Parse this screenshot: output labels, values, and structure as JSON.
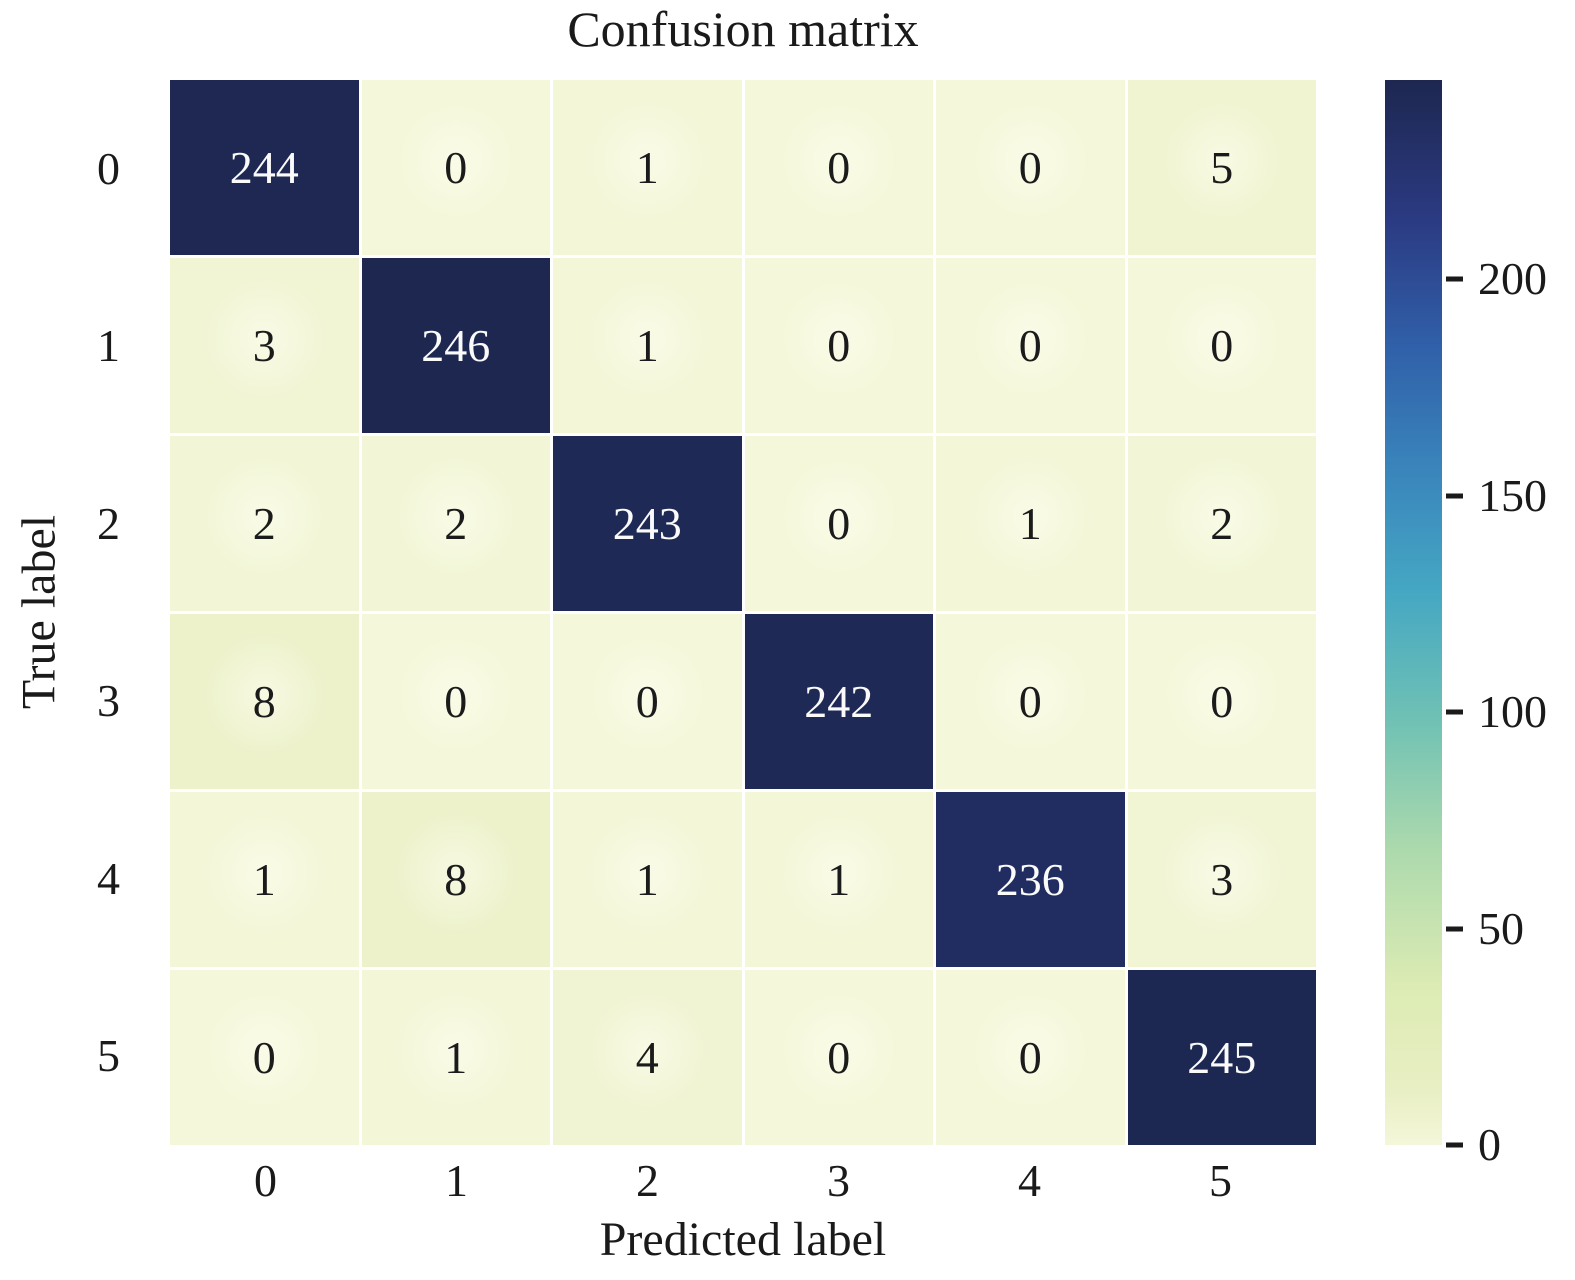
{
  "chart_data": {
    "type": "heatmap",
    "title": "Confusion matrix",
    "xlabel": "Predicted label",
    "ylabel": "True label",
    "x_tick_labels": [
      "0",
      "1",
      "2",
      "3",
      "4",
      "5"
    ],
    "y_tick_labels": [
      "0",
      "1",
      "2",
      "3",
      "4",
      "5"
    ],
    "matrix": [
      [
        244,
        0,
        1,
        0,
        0,
        5
      ],
      [
        3,
        246,
        1,
        0,
        0,
        0
      ],
      [
        2,
        2,
        243,
        0,
        1,
        2
      ],
      [
        8,
        0,
        0,
        242,
        0,
        0
      ],
      [
        1,
        8,
        1,
        1,
        236,
        3
      ],
      [
        0,
        1,
        4,
        0,
        0,
        245
      ]
    ],
    "colorbar": {
      "position": "right",
      "vmin": 0,
      "vmax": 246,
      "tick_values": [
        0,
        50,
        100,
        150,
        200
      ],
      "tick_labels": [
        "0",
        "50",
        "100",
        "150",
        "200"
      ]
    },
    "colormap": {
      "name": "YlGnBu",
      "stops": [
        [
          0.0,
          "#f4f7d9"
        ],
        [
          0.05,
          "#e9efc4"
        ],
        [
          0.15,
          "#dcebb3"
        ],
        [
          0.28,
          "#abd9ad"
        ],
        [
          0.4,
          "#6fc1b4"
        ],
        [
          0.52,
          "#45a7c3"
        ],
        [
          0.63,
          "#3a86bc"
        ],
        [
          0.75,
          "#3060a9"
        ],
        [
          0.87,
          "#2b3a82"
        ],
        [
          1.0,
          "#1d2750"
        ]
      ]
    },
    "grid": false,
    "style": {
      "background": "#ffffff",
      "text_color": "#1a1a1a",
      "light_cell_text": "#1b1b1b",
      "dark_cell_text": "#fafafa",
      "cell_gap_color": "#ffffff",
      "dark_text_threshold_fraction": 0.5
    }
  }
}
